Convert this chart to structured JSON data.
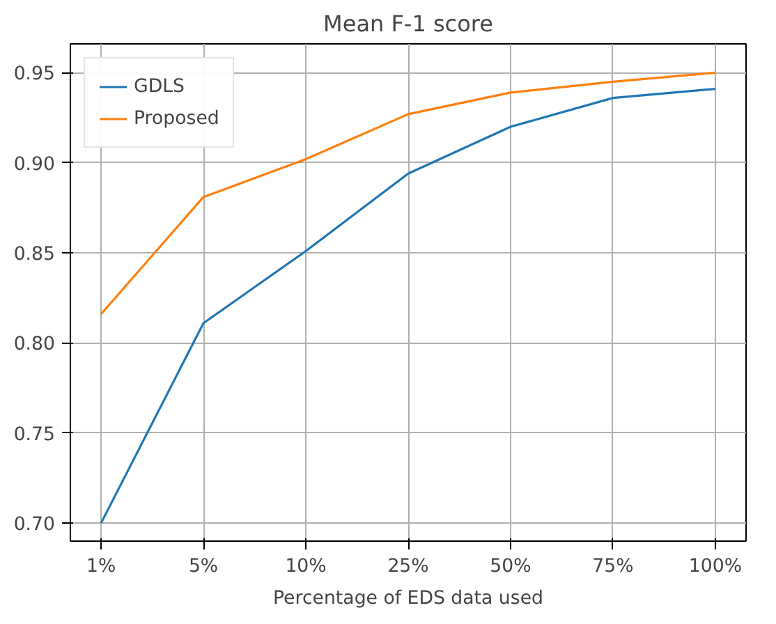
{
  "chart_data": {
    "type": "line",
    "title": "Mean F-1 score",
    "xlabel": "Percentage of EDS data used",
    "categories": [
      "1%",
      "5%",
      "10%",
      "25%",
      "50%",
      "75%",
      "100%"
    ],
    "series": [
      {
        "name": "GDLS",
        "color": "#1f77b4",
        "values": [
          0.7,
          0.811,
          0.851,
          0.894,
          0.92,
          0.936,
          0.941
        ]
      },
      {
        "name": "Proposed",
        "color": "#ff7f0e",
        "values": [
          0.816,
          0.881,
          0.902,
          0.927,
          0.939,
          0.945,
          0.95
        ]
      }
    ],
    "ylim": [
      0.69,
      0.966
    ],
    "yticks": [
      {
        "value": 0.7,
        "label": "0.70"
      },
      0.75,
      {
        "value": 0.8,
        "label": "0.80"
      },
      0.85,
      {
        "value": 0.9,
        "label": "0.90"
      },
      0.95
    ],
    "grid": true,
    "legend": "top left",
    "line_style": "solid",
    "marker": "none"
  }
}
